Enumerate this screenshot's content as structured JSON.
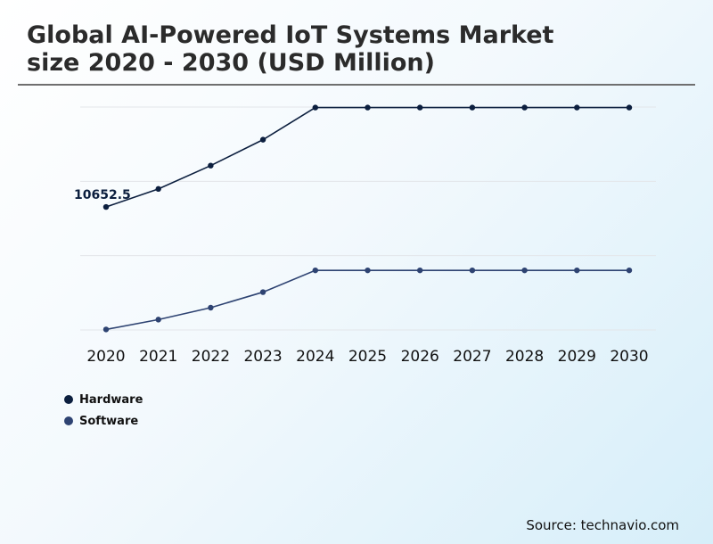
{
  "header": {
    "title_line1": "Global AI-Powered IoT Systems Market",
    "title_line2": "size 2020 - 2030 (USD Million)"
  },
  "source": "Source: technavio.com",
  "chart_data": {
    "type": "line",
    "title": "Global AI-Powered IoT Systems Market size 2020 - 2030 (USD Million)",
    "xlabel": "",
    "ylabel": "",
    "x": [
      "2020",
      "2021",
      "2022",
      "2023",
      "2024",
      "2025",
      "2026",
      "2027",
      "2028",
      "2029",
      "2030"
    ],
    "series": [
      {
        "name": "Hardware",
        "color": "#0c1f3f",
        "values": [
          10652.5,
          11000,
          11450,
          11950,
          12570,
          12570,
          12570,
          12570,
          12570,
          12570,
          12570
        ]
      },
      {
        "name": "Software",
        "color": "#2e4372",
        "values": [
          8290,
          8480,
          8710,
          9010,
          9430,
          9430,
          9430,
          9430,
          9430,
          9430,
          9430
        ]
      }
    ],
    "ylim": [
      8280,
      12580
    ],
    "grid": true,
    "legend": "bottom-left",
    "annotations": [
      {
        "series": "Hardware",
        "x": "2020",
        "label": "10652.5"
      }
    ]
  }
}
